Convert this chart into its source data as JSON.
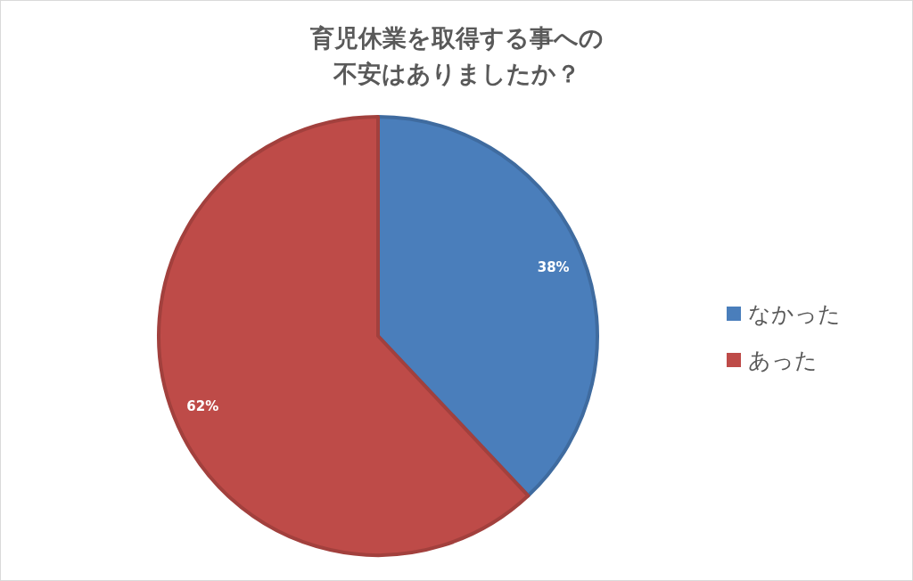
{
  "chart_data": {
    "type": "pie",
    "title": "育児休業を取得する事への不安はありましたか？",
    "categories": [
      "なかった",
      "あった"
    ],
    "values": [
      38,
      62
    ],
    "colors": [
      "#4a7ebb",
      "#be4b48"
    ],
    "value_labels": [
      "38%",
      "62%"
    ],
    "legend": "right"
  }
}
